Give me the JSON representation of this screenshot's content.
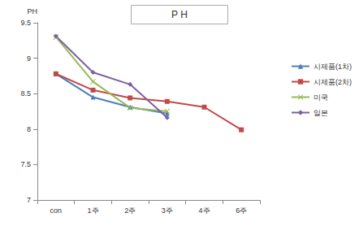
{
  "chart_data": {
    "type": "line",
    "title": "P H",
    "y_label": "PH",
    "categories": [
      "con",
      "1주",
      "2주",
      "3주",
      "4주",
      "6주"
    ],
    "series": [
      {
        "name": "시제품(1차)",
        "color": "#4a7ebb",
        "marker": "triangle",
        "values": [
          8.78,
          8.45,
          8.31,
          8.22,
          null,
          null
        ]
      },
      {
        "name": "시제품(2차)",
        "color": "#be4b48",
        "marker": "square",
        "values": [
          8.78,
          8.55,
          8.44,
          8.39,
          8.31,
          7.99
        ]
      },
      {
        "name": "미국",
        "color": "#98b954",
        "marker": "x",
        "values": [
          9.3,
          8.67,
          8.3,
          8.25,
          null,
          null
        ]
      },
      {
        "name": "일본",
        "color": "#7d60a0",
        "marker": "diamond",
        "values": [
          9.31,
          8.8,
          8.63,
          8.16,
          null,
          null
        ]
      }
    ],
    "ylim": [
      7,
      9.5
    ],
    "yticks": [
      7,
      7.5,
      8,
      8.5,
      9,
      9.5
    ],
    "grid": false,
    "legend": "right"
  }
}
